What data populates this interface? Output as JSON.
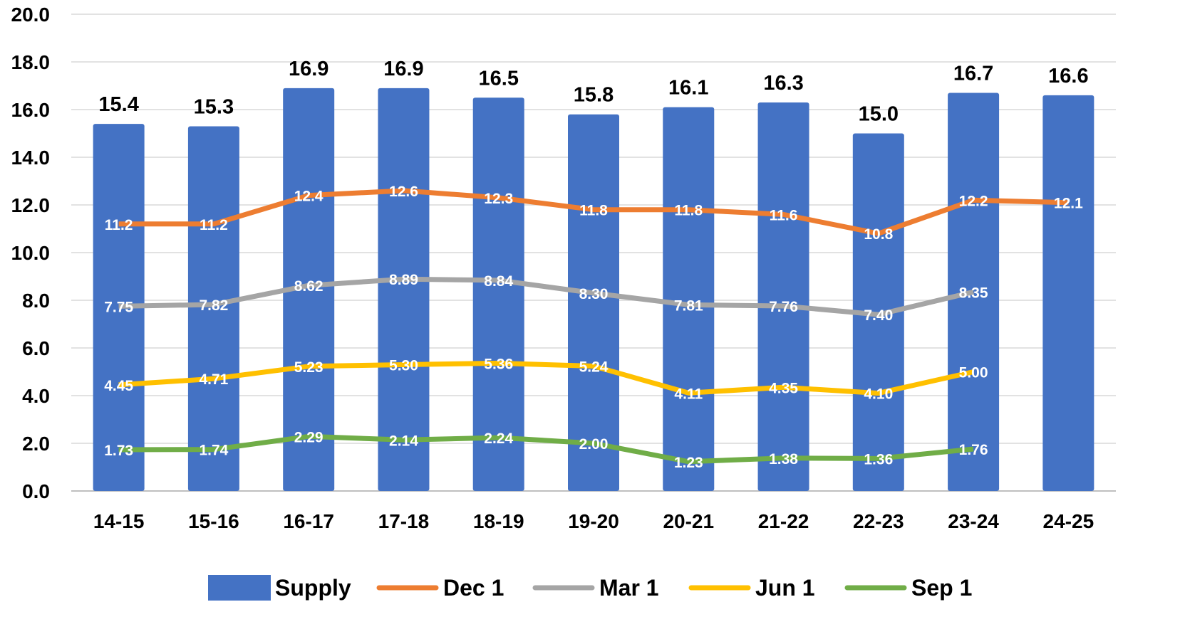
{
  "chart_data": {
    "type": "bar",
    "title": "",
    "xlabel": "",
    "ylabel": "",
    "categories": [
      "14-15",
      "15-16",
      "16-17",
      "17-18",
      "18-19",
      "19-20",
      "20-21",
      "21-22",
      "22-23",
      "23-24",
      "24-25"
    ],
    "ylim": [
      0,
      20
    ],
    "yticks": [
      "0.0",
      "2.0",
      "4.0",
      "6.0",
      "8.0",
      "10.0",
      "12.0",
      "14.0",
      "16.0",
      "18.0",
      "20.0"
    ],
    "grid": true,
    "legend": "bottom",
    "series": [
      {
        "name": "Supply",
        "type": "bar",
        "color": "#4472C4",
        "values": [
          15.4,
          15.3,
          16.9,
          16.9,
          16.5,
          15.8,
          16.1,
          16.3,
          15.0,
          16.7,
          16.6
        ],
        "labels": [
          "15.4",
          "15.3",
          "16.9",
          "16.9",
          "16.5",
          "15.8",
          "16.1",
          "16.3",
          "15.0",
          "16.7",
          "16.6"
        ]
      },
      {
        "name": "Dec 1",
        "type": "line",
        "color": "#ED7D31",
        "values": [
          11.2,
          11.2,
          12.4,
          12.6,
          12.3,
          11.8,
          11.8,
          11.6,
          10.8,
          12.2,
          12.1
        ],
        "labels": [
          "11.2",
          "11.2",
          "12.4",
          "12.6",
          "12.3",
          "11.8",
          "11.8",
          "11.6",
          "10.8",
          "12.2",
          "12.1"
        ]
      },
      {
        "name": "Mar 1",
        "type": "line",
        "color": "#A5A5A5",
        "values": [
          7.75,
          7.82,
          8.62,
          8.89,
          8.84,
          8.3,
          7.81,
          7.76,
          7.4,
          8.35,
          null
        ],
        "labels": [
          "7.75",
          "7.82",
          "8.62",
          "8.89",
          "8.84",
          "8.30",
          "7.81",
          "7.76",
          "7.40",
          "8.35",
          null
        ]
      },
      {
        "name": "Jun 1",
        "type": "line",
        "color": "#FFC000",
        "values": [
          4.45,
          4.71,
          5.23,
          5.3,
          5.36,
          5.24,
          4.11,
          4.35,
          4.1,
          5.0,
          null
        ],
        "labels": [
          "4.45",
          "4.71",
          "5.23",
          "5.30",
          "5.36",
          "5.24",
          "4.11",
          "4.35",
          "4.10",
          "5.00",
          null
        ]
      },
      {
        "name": "Sep 1",
        "type": "line",
        "color": "#70AD47",
        "values": [
          1.73,
          1.74,
          2.29,
          2.14,
          2.24,
          2.0,
          1.23,
          1.38,
          1.36,
          1.76,
          null
        ],
        "labels": [
          "1.73",
          "1.74",
          "2.29",
          "2.14",
          "2.24",
          "2.00",
          "1.23",
          "1.38",
          "1.36",
          "1.76",
          null
        ]
      }
    ]
  }
}
